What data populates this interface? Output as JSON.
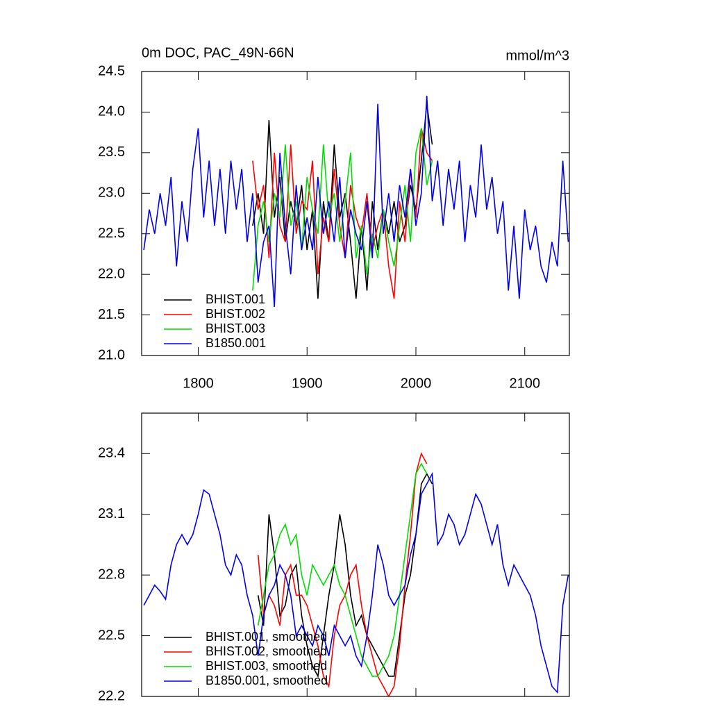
{
  "chart_data": [
    {
      "type": "line",
      "title": "0m DOC, PAC_49N-66N",
      "units": "mmol/m^3",
      "xlim": [
        1748,
        2141
      ],
      "xticks": [
        1800,
        1900,
        2000,
        2100
      ],
      "xtick_labels": true,
      "ylim": [
        21.0,
        24.5
      ],
      "yticks": [
        {
          "value": 21.0,
          "label": "21.0"
        },
        21.5,
        {
          "value": 22.0,
          "label": "22.0"
        },
        22.5,
        {
          "value": 23.0,
          "label": "23.0"
        },
        23.5,
        {
          "value": 24.0,
          "label": "24.0"
        },
        24.5
      ],
      "legend": "bottom-left",
      "series": [
        {
          "name": "BHIST.001",
          "color": "#000000",
          "x": [
            1850,
            1855,
            1860,
            1865,
            1870,
            1875,
            1880,
            1885,
            1890,
            1895,
            1900,
            1905,
            1910,
            1915,
            1920,
            1925,
            1930,
            1935,
            1940,
            1945,
            1950,
            1955,
            1960,
            1965,
            1970,
            1975,
            1980,
            1985,
            1990,
            1995,
            2000,
            2005,
            2010,
            2015
          ],
          "values": [
            22.6,
            23.0,
            22.5,
            23.9,
            22.7,
            23.2,
            22.4,
            22.9,
            22.6,
            23.1,
            22.3,
            22.8,
            21.7,
            22.9,
            22.4,
            23.6,
            22.7,
            23.0,
            22.4,
            21.7,
            22.6,
            21.8,
            22.9,
            22.3,
            22.8,
            22.5,
            22.9,
            22.4,
            22.6,
            23.1,
            22.8,
            23.4,
            24.1,
            23.6
          ]
        },
        {
          "name": "BHIST.002",
          "color": "#ff0000",
          "x": [
            1850,
            1855,
            1860,
            1865,
            1870,
            1875,
            1880,
            1885,
            1890,
            1895,
            1900,
            1905,
            1910,
            1915,
            1920,
            1925,
            1930,
            1935,
            1940,
            1945,
            1950,
            1955,
            1960,
            1965,
            1970,
            1975,
            1980,
            1985,
            1990,
            1995,
            2000,
            2005,
            2010,
            2015
          ],
          "values": [
            23.4,
            22.8,
            23.1,
            22.2,
            23.5,
            22.6,
            22.4,
            23.6,
            22.5,
            22.9,
            22.8,
            23.4,
            22.0,
            22.7,
            22.4,
            23.3,
            22.6,
            22.2,
            23.1,
            22.7,
            22.5,
            23.0,
            22.3,
            22.6,
            22.8,
            22.1,
            21.7,
            22.9,
            22.4,
            23.3,
            22.7,
            23.8,
            23.5,
            23.4
          ]
        },
        {
          "name": "BHIST.003",
          "color": "#00dd00",
          "x": [
            1850,
            1855,
            1860,
            1865,
            1870,
            1875,
            1880,
            1885,
            1890,
            1895,
            1900,
            1905,
            1910,
            1915,
            1920,
            1925,
            1930,
            1935,
            1940,
            1945,
            1950,
            1955,
            1960,
            1965,
            1970,
            1975,
            1980,
            1985,
            1990,
            1995,
            2000,
            2005,
            2010,
            2015
          ],
          "values": [
            21.8,
            22.6,
            22.9,
            22.4,
            23.0,
            22.7,
            23.6,
            22.6,
            22.9,
            22.3,
            23.2,
            22.8,
            22.5,
            23.6,
            22.7,
            23.0,
            22.4,
            22.9,
            23.5,
            22.2,
            22.6,
            22.0,
            22.5,
            22.2,
            22.8,
            22.4,
            22.1,
            22.6,
            23.1,
            22.4,
            23.5,
            23.8,
            23.1,
            23.4
          ]
        },
        {
          "name": "B1850.001",
          "color": "#0000ee",
          "x": [
            1750,
            1755,
            1760,
            1765,
            1770,
            1775,
            1780,
            1785,
            1790,
            1795,
            1800,
            1805,
            1810,
            1815,
            1820,
            1825,
            1830,
            1835,
            1840,
            1845,
            1850,
            1855,
            1860,
            1865,
            1870,
            1875,
            1880,
            1885,
            1890,
            1895,
            1900,
            1905,
            1910,
            1915,
            1920,
            1925,
            1930,
            1935,
            1940,
            1945,
            1950,
            1955,
            1960,
            1965,
            1970,
            1975,
            1980,
            1985,
            1990,
            1995,
            2000,
            2005,
            2010,
            2015,
            2020,
            2025,
            2030,
            2035,
            2040,
            2045,
            2050,
            2055,
            2060,
            2065,
            2070,
            2075,
            2080,
            2085,
            2090,
            2095,
            2100,
            2105,
            2110,
            2115,
            2120,
            2125,
            2130,
            2135,
            2140
          ],
          "values": [
            22.3,
            22.8,
            22.5,
            23.0,
            22.6,
            23.2,
            22.1,
            22.9,
            22.4,
            23.3,
            23.8,
            22.7,
            23.4,
            22.6,
            23.3,
            22.5,
            23.4,
            22.8,
            23.3,
            22.4,
            23.0,
            21.9,
            22.4,
            22.6,
            21.6,
            23.5,
            22.6,
            22.0,
            23.1,
            22.3,
            22.7,
            22.3,
            23.2,
            22.5,
            22.9,
            22.4,
            23.2,
            22.2,
            22.8,
            22.5,
            22.3,
            22.9,
            22.2,
            24.1,
            22.5,
            23.0,
            22.4,
            23.1,
            22.7,
            23.3,
            22.6,
            23.0,
            24.2,
            22.9,
            23.4,
            22.6,
            23.3,
            22.8,
            23.4,
            22.4,
            23.1,
            22.7,
            23.6,
            22.8,
            23.2,
            22.5,
            22.9,
            21.8,
            22.6,
            21.7,
            22.8,
            22.3,
            22.6,
            22.1,
            21.9,
            22.4,
            22.1,
            23.4,
            22.4
          ]
        }
      ]
    },
    {
      "type": "line",
      "xlim": [
        1748,
        2141
      ],
      "xticks": [
        1800,
        1900,
        2000,
        2100
      ],
      "xtick_labels": false,
      "ylim": [
        22.2,
        23.6
      ],
      "yticks": [
        22.2,
        22.5,
        22.8,
        23.1,
        23.4
      ],
      "legend": "bottom-left",
      "series": [
        {
          "name": "BHIST.001, smoothed",
          "color": "#000000",
          "x": [
            1855,
            1860,
            1865,
            1870,
            1875,
            1880,
            1885,
            1890,
            1895,
            1900,
            1905,
            1910,
            1915,
            1920,
            1925,
            1930,
            1935,
            1940,
            1945,
            1950,
            1955,
            1960,
            1965,
            1970,
            1975,
            1980,
            1985,
            1990,
            1995,
            2000,
            2005,
            2010,
            2015
          ],
          "values": [
            22.7,
            22.55,
            23.1,
            22.9,
            22.6,
            22.65,
            22.8,
            22.85,
            22.6,
            22.45,
            22.35,
            22.3,
            22.5,
            22.7,
            22.85,
            23.1,
            22.95,
            22.7,
            22.55,
            22.6,
            22.5,
            22.45,
            22.4,
            22.35,
            22.3,
            22.3,
            22.5,
            22.7,
            22.8,
            23.0,
            23.25,
            23.3,
            23.25
          ]
        },
        {
          "name": "BHIST.002, smoothed",
          "color": "#ff0000",
          "x": [
            1855,
            1860,
            1865,
            1870,
            1875,
            1880,
            1885,
            1890,
            1895,
            1900,
            1905,
            1910,
            1915,
            1920,
            1925,
            1930,
            1935,
            1940,
            1945,
            1950,
            1955,
            1960,
            1965,
            1970,
            1975,
            1980,
            1985,
            1990,
            1995,
            2000,
            2005,
            2010
          ],
          "values": [
            22.9,
            22.6,
            22.7,
            22.65,
            22.55,
            22.8,
            22.85,
            22.7,
            22.7,
            22.65,
            22.55,
            22.45,
            22.3,
            22.25,
            22.5,
            22.65,
            22.7,
            22.8,
            22.85,
            22.65,
            22.5,
            22.4,
            22.3,
            22.25,
            22.2,
            22.25,
            22.45,
            22.75,
            23.0,
            23.3,
            23.4,
            23.35
          ]
        },
        {
          "name": "BHIST.003, smoothed",
          "color": "#00dd00",
          "x": [
            1855,
            1860,
            1865,
            1870,
            1875,
            1880,
            1885,
            1890,
            1895,
            1900,
            1905,
            1910,
            1915,
            1920,
            1925,
            1930,
            1935,
            1940,
            1945,
            1950,
            1955,
            1960,
            1965,
            1970,
            1975,
            1980,
            1985,
            1990,
            1995,
            2000,
            2005,
            2010
          ],
          "values": [
            22.55,
            22.7,
            22.85,
            22.9,
            23.0,
            23.05,
            22.95,
            23.0,
            22.8,
            22.7,
            22.85,
            22.8,
            22.75,
            22.8,
            22.85,
            22.75,
            22.7,
            22.6,
            22.5,
            22.4,
            22.35,
            22.3,
            22.3,
            22.35,
            22.4,
            22.5,
            22.7,
            22.9,
            23.1,
            23.3,
            23.35,
            23.3
          ]
        },
        {
          "name": "B1850.001, smoothed",
          "color": "#0000ee",
          "x": [
            1750,
            1755,
            1760,
            1765,
            1770,
            1775,
            1780,
            1785,
            1790,
            1795,
            1800,
            1805,
            1810,
            1815,
            1820,
            1825,
            1830,
            1835,
            1840,
            1845,
            1850,
            1855,
            1860,
            1865,
            1870,
            1875,
            1880,
            1885,
            1890,
            1895,
            1900,
            1905,
            1910,
            1915,
            1920,
            1925,
            1930,
            1935,
            1940,
            1945,
            1950,
            1955,
            1960,
            1965,
            1970,
            1975,
            1980,
            1985,
            1990,
            1995,
            2000,
            2005,
            2010,
            2015,
            2020,
            2025,
            2030,
            2035,
            2040,
            2045,
            2050,
            2055,
            2060,
            2065,
            2070,
            2075,
            2080,
            2085,
            2090,
            2095,
            2100,
            2105,
            2110,
            2115,
            2120,
            2125,
            2130,
            2135,
            2140
          ],
          "values": [
            22.65,
            22.7,
            22.75,
            22.72,
            22.68,
            22.85,
            22.95,
            23.0,
            22.95,
            23.0,
            23.1,
            23.22,
            23.2,
            23.1,
            23.0,
            22.85,
            22.8,
            22.9,
            22.85,
            22.7,
            22.6,
            22.4,
            22.6,
            22.7,
            22.75,
            22.85,
            22.8,
            22.7,
            22.5,
            22.55,
            22.5,
            22.45,
            22.55,
            22.5,
            22.4,
            22.55,
            22.5,
            22.45,
            22.5,
            22.4,
            22.35,
            22.5,
            22.7,
            22.95,
            22.85,
            22.7,
            22.65,
            22.7,
            22.75,
            22.9,
            23.0,
            23.2,
            23.25,
            23.3,
            22.95,
            23.0,
            23.1,
            23.05,
            22.95,
            23.0,
            23.1,
            23.2,
            23.15,
            23.05,
            22.95,
            23.05,
            22.85,
            22.75,
            22.85,
            22.8,
            22.75,
            22.7,
            22.6,
            22.45,
            22.35,
            22.25,
            22.22,
            22.65,
            22.8
          ]
        }
      ]
    }
  ]
}
